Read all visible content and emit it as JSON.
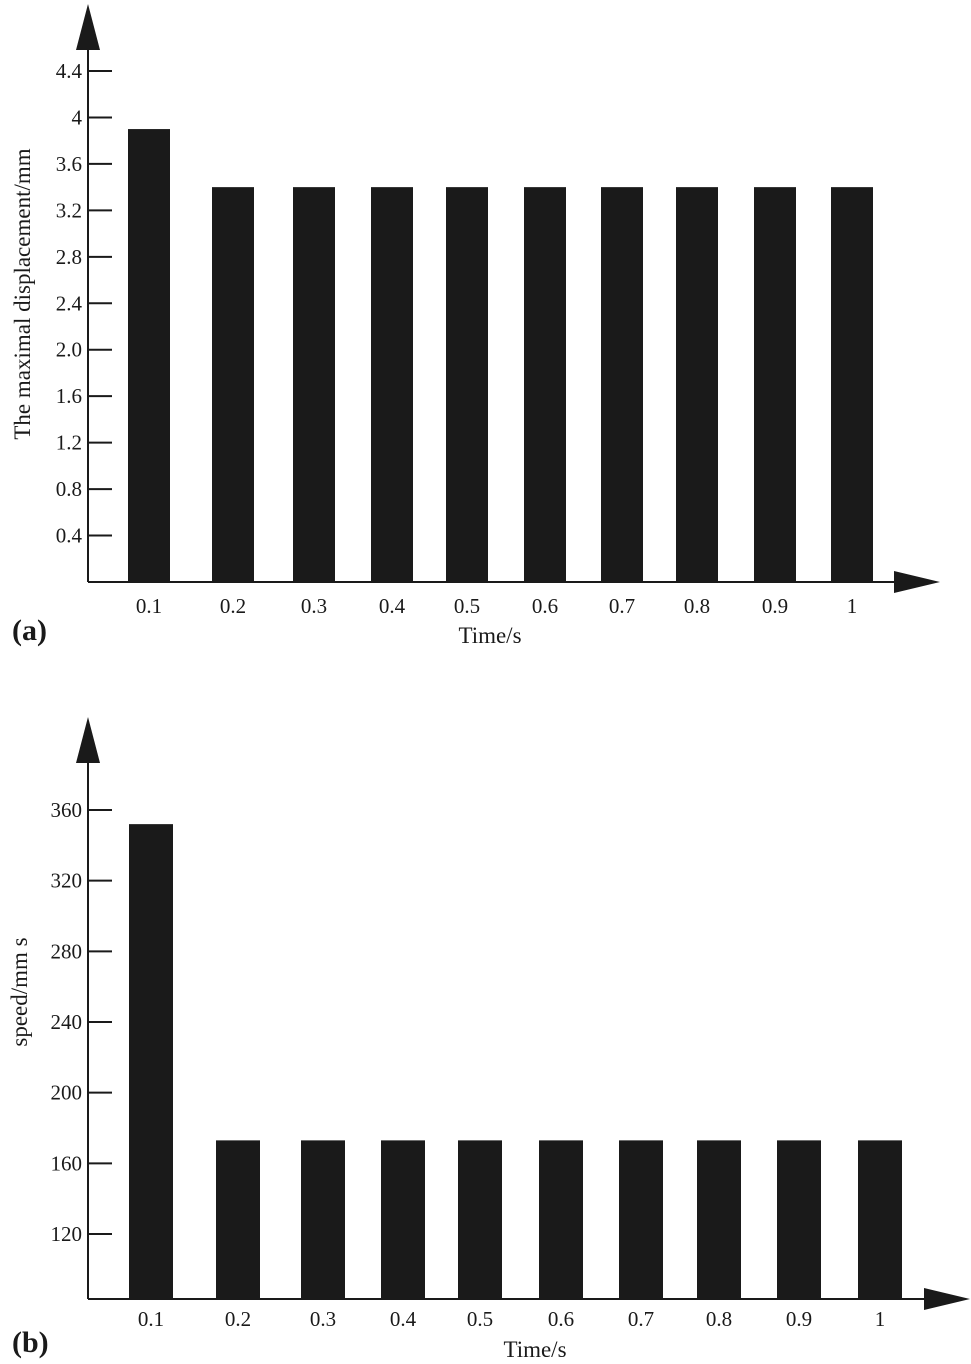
{
  "colors": {
    "bar": "#1a1a1a",
    "axis": "#1a1a1a",
    "background": "#ffffff"
  },
  "chart_data": [
    {
      "type": "bar",
      "panel_label": "(a)",
      "categories": [
        "0.1",
        "0.2",
        "0.3",
        "0.4",
        "0.5",
        "0.6",
        "0.7",
        "0.8",
        "0.9",
        "1"
      ],
      "values": [
        3.9,
        3.4,
        3.4,
        3.4,
        3.4,
        3.4,
        3.4,
        3.4,
        3.4,
        3.4
      ],
      "title": "",
      "xlabel": "Time/s",
      "ylabel": "The maximal displacement/mm",
      "ylim": [
        0,
        4.4
      ],
      "yticks": [
        0.4,
        0.8,
        1.2,
        1.6,
        2.0,
        2.4,
        2.8,
        3.2,
        3.6,
        4,
        4.4
      ],
      "ytick_labels": [
        "0.4",
        "0.8",
        "1.2",
        "1.6",
        "2.0",
        "2.4",
        "2.8",
        "3.2",
        "3.6",
        "4",
        "4.4"
      ],
      "grid": false,
      "legend": "none"
    },
    {
      "type": "bar",
      "panel_label": "(b)",
      "categories": [
        "0.1",
        "0.2",
        "0.3",
        "0.4",
        "0.5",
        "0.6",
        "0.7",
        "0.8",
        "0.9",
        "1"
      ],
      "values": [
        352,
        173,
        173,
        173,
        173,
        173,
        173,
        173,
        173,
        173
      ],
      "title": "",
      "xlabel": "Time/s",
      "ylabel": "speed/mm s",
      "ylim": [
        92,
        360
      ],
      "yticks": [
        120,
        160,
        200,
        240,
        280,
        320,
        360
      ],
      "ytick_labels": [
        "120",
        "160",
        "200",
        "240",
        "280",
        "320",
        "360"
      ],
      "grid": false,
      "legend": "none"
    }
  ]
}
